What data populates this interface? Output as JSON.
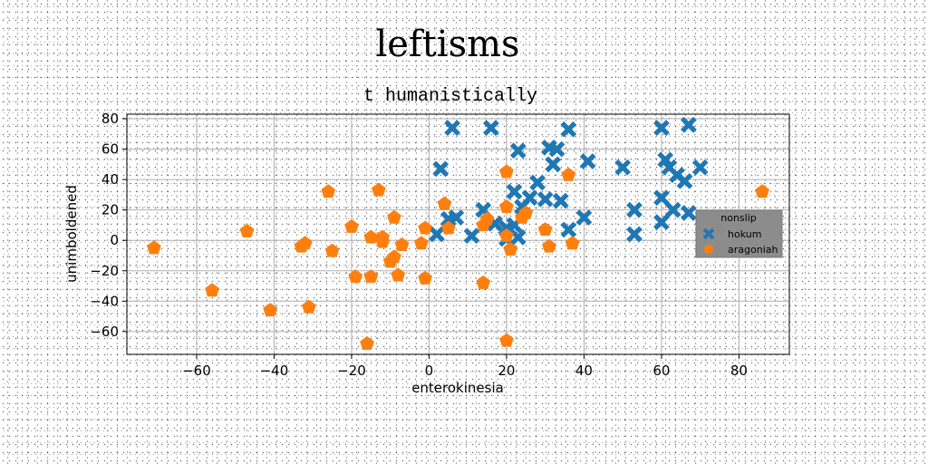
{
  "chart_data": {
    "type": "scatter",
    "title": "leftisms",
    "subtitle": "t humanistically",
    "xlabel": "enterokinesia",
    "ylabel": "unimboldened",
    "xlim": [
      -78,
      93
    ],
    "ylim": [
      -75,
      83
    ],
    "xticks": [
      -60,
      -40,
      -20,
      0,
      20,
      40,
      60,
      80
    ],
    "yticks": [
      -60,
      -40,
      -20,
      0,
      20,
      40,
      60,
      80
    ],
    "grid": true,
    "legend": {
      "title": "nonslip",
      "position": "right"
    },
    "series": [
      {
        "name": "hokum",
        "color": "#1f77b4",
        "marker": "x",
        "points": [
          [
            6,
            74
          ],
          [
            16,
            74
          ],
          [
            36,
            73
          ],
          [
            60,
            74
          ],
          [
            67,
            76
          ],
          [
            23,
            59
          ],
          [
            31,
            61
          ],
          [
            33,
            60
          ],
          [
            32,
            50
          ],
          [
            41,
            52
          ],
          [
            50,
            48
          ],
          [
            70,
            48
          ],
          [
            62,
            48
          ],
          [
            61,
            53
          ],
          [
            64,
            43
          ],
          [
            66,
            39
          ],
          [
            3,
            47
          ],
          [
            22,
            32
          ],
          [
            26,
            28
          ],
          [
            28,
            38
          ],
          [
            34,
            26
          ],
          [
            30,
            27
          ],
          [
            24,
            22
          ],
          [
            14,
            20
          ],
          [
            17,
            11
          ],
          [
            20,
            8
          ],
          [
            22,
            10
          ],
          [
            5,
            14
          ],
          [
            7,
            15
          ],
          [
            2,
            4
          ],
          [
            11,
            3
          ],
          [
            20,
            1
          ],
          [
            23,
            2
          ],
          [
            36,
            7
          ],
          [
            40,
            15
          ],
          [
            53,
            20
          ],
          [
            53,
            4
          ],
          [
            60,
            12
          ],
          [
            60,
            28
          ],
          [
            63,
            20
          ],
          [
            67,
            18
          ]
        ]
      },
      {
        "name": "aragoniah",
        "color": "#ff7f0e",
        "marker": "pentagon",
        "points": [
          [
            -71,
            -5
          ],
          [
            -56,
            -33
          ],
          [
            -47,
            6
          ],
          [
            -41,
            -46
          ],
          [
            -33,
            -4
          ],
          [
            -32,
            -2
          ],
          [
            -31,
            -44
          ],
          [
            -26,
            32
          ],
          [
            -25,
            -7
          ],
          [
            -20,
            9
          ],
          [
            -19,
            -24
          ],
          [
            -16,
            -68
          ],
          [
            -15,
            2
          ],
          [
            -15,
            -24
          ],
          [
            -13,
            33
          ],
          [
            -12,
            2
          ],
          [
            -12,
            -1
          ],
          [
            -10,
            -14
          ],
          [
            -9,
            15
          ],
          [
            -9,
            -11
          ],
          [
            -8,
            -23
          ],
          [
            -7,
            -3
          ],
          [
            -2,
            -2
          ],
          [
            -1,
            8
          ],
          [
            -1,
            -25
          ],
          [
            4,
            24
          ],
          [
            5,
            8
          ],
          [
            14,
            10
          ],
          [
            14,
            -28
          ],
          [
            15,
            14
          ],
          [
            20,
            45
          ],
          [
            20,
            22
          ],
          [
            20,
            3
          ],
          [
            20,
            -66
          ],
          [
            21,
            -6
          ],
          [
            24,
            15
          ],
          [
            25,
            18
          ],
          [
            30,
            7
          ],
          [
            31,
            -4
          ],
          [
            36,
            43
          ],
          [
            37,
            -2
          ],
          [
            86,
            32
          ]
        ]
      }
    ]
  }
}
